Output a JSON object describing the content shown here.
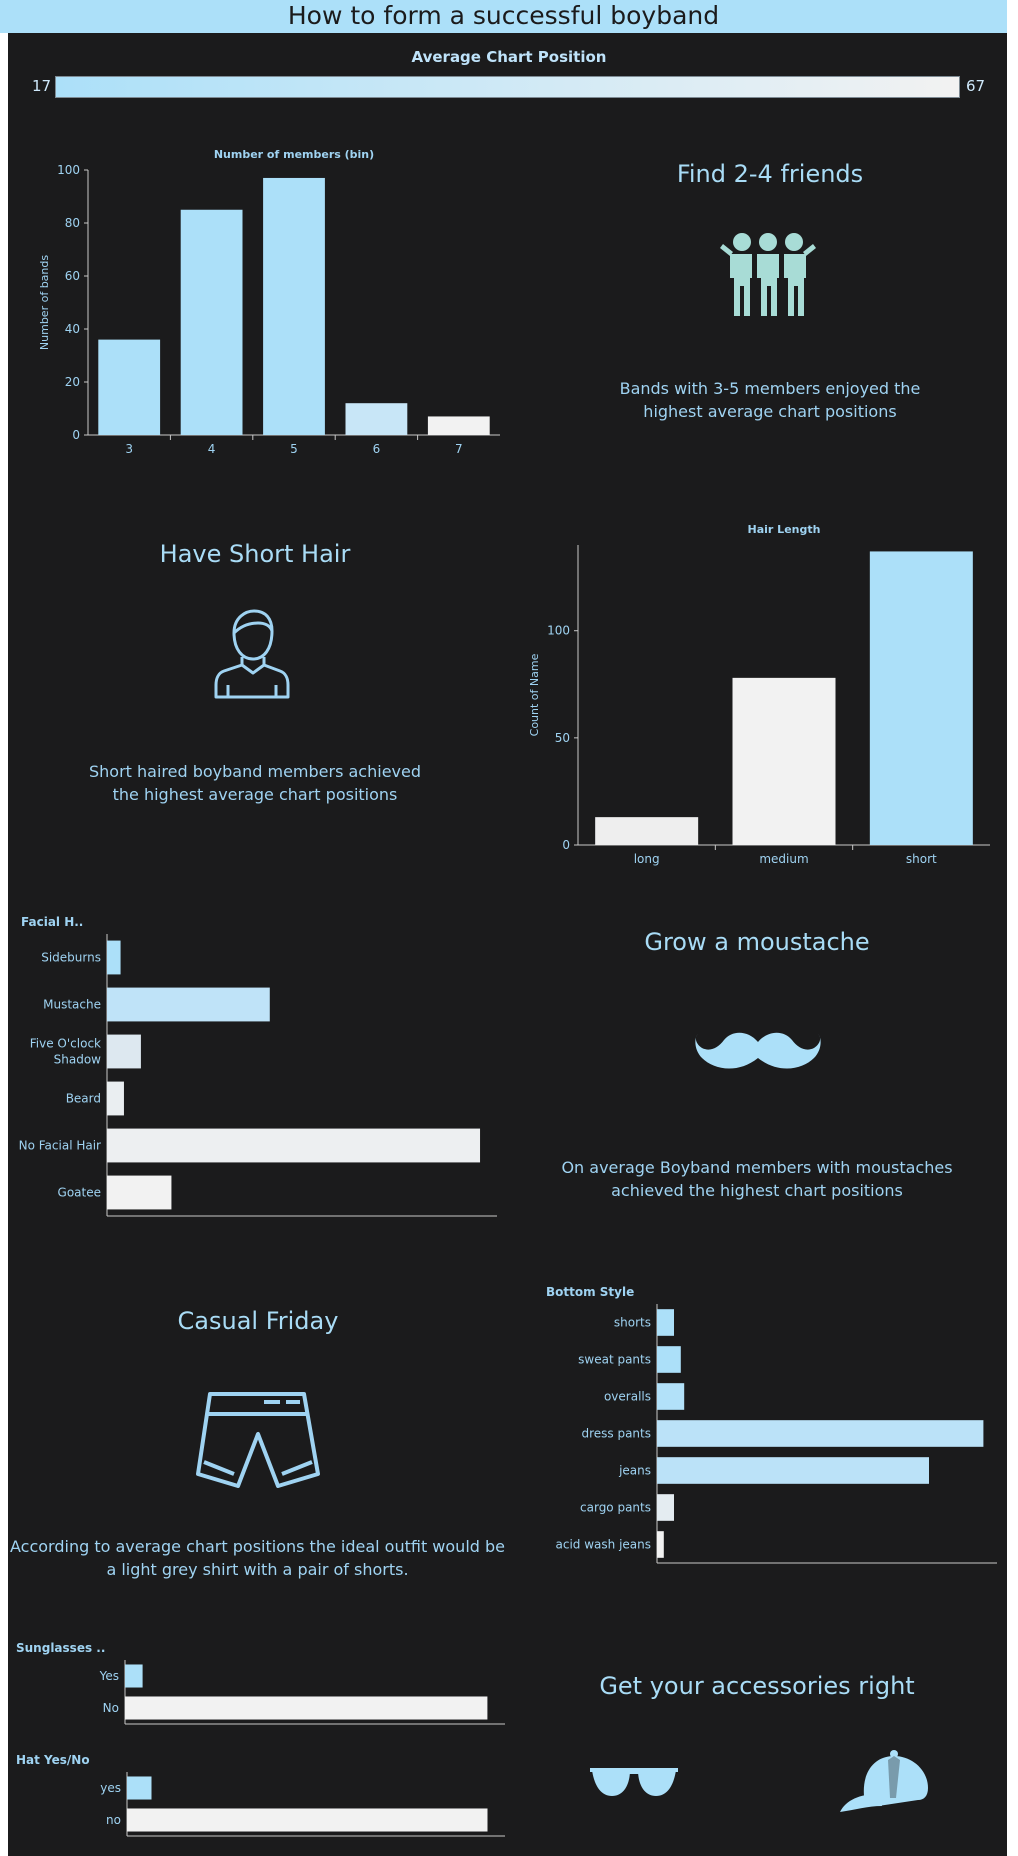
{
  "dashboard_title": "How to form a successful boyband",
  "legend": {
    "title": "Average Chart Position",
    "min_label": "17",
    "max_label": "67",
    "color_low": "#ace0f9",
    "color_high": "#f2f2f2"
  },
  "colors": {
    "background": "#1b1b1c",
    "accent": "#ace0f9",
    "light": "#f2f2f2",
    "text": "#9fd3f2"
  },
  "panels": {
    "friends": {
      "heading": "Find 2-4 friends",
      "text_line1": "Bands with 3-5 members enjoyed the",
      "text_line2": "highest average chart positions",
      "icon": "group-of-friends-icon"
    },
    "hair": {
      "heading": "Have Short Hair",
      "text_line1": "Short haired boyband members achieved",
      "text_line2": "the highest average chart positions",
      "icon": "person-short-hair-icon"
    },
    "moustache": {
      "heading": "Grow a moustache",
      "text_line1": "On average Boyband members with moustaches",
      "text_line2": "achieved the highest chart positions",
      "icon": "moustache-icon"
    },
    "outfit": {
      "heading": "Casual Friday",
      "text_line1": "According to average chart positions the ideal outfit would be",
      "text_line2": "a light grey shirt with a pair of shorts.",
      "icon": "shorts-icon"
    },
    "accessories": {
      "heading": "Get your accessories right",
      "icons": [
        "sunglasses-icon",
        "cap-icon"
      ]
    }
  },
  "chart_data": [
    {
      "id": "members",
      "type": "bar",
      "title": "Number of members (bin)",
      "xlabel": "",
      "ylabel": "Number of bands",
      "categories": [
        "3",
        "4",
        "5",
        "6",
        "7"
      ],
      "values": [
        36,
        85,
        97,
        12,
        7
      ],
      "colors": [
        "#ace0f9",
        "#ace0f9",
        "#ace0f9",
        "#c8e6f7",
        "#f2f2f2"
      ],
      "yticks": [
        0,
        20,
        40,
        60,
        80,
        100
      ],
      "ylim": [
        0,
        100
      ]
    },
    {
      "id": "hair",
      "type": "bar",
      "title": "Hair Length",
      "xlabel": "",
      "ylabel": "Count of Name",
      "categories": [
        "long",
        "medium",
        "short"
      ],
      "values": [
        13,
        78,
        137
      ],
      "colors": [
        "#eeeeee",
        "#f2f2f2",
        "#ace0f9"
      ],
      "yticks": [
        0,
        50,
        100
      ],
      "ylim": [
        0,
        140
      ]
    },
    {
      "id": "facial",
      "type": "bar",
      "orientation": "horizontal",
      "title": "Facial H..",
      "categories": [
        "Sideburns",
        "Mustache",
        "Five O'clock Shadow",
        "Beard",
        "No Facial Hair",
        "Goatee"
      ],
      "values": [
        4,
        48,
        10,
        5,
        110,
        19
      ],
      "colors": [
        "#ace0f9",
        "#bfe3f8",
        "#dde8f0",
        "#eaeef1",
        "#edeff1",
        "#f2f2f2"
      ],
      "xlim": [
        0,
        115
      ]
    },
    {
      "id": "bottom",
      "type": "bar",
      "orientation": "horizontal",
      "title": "Bottom Style",
      "categories": [
        "shorts",
        "sweat pants",
        "overalls",
        "dress pants",
        "jeans",
        "cargo pants",
        "acid wash jeans"
      ],
      "values": [
        5,
        7,
        8,
        96,
        80,
        5,
        2
      ],
      "colors": [
        "#ace0f9",
        "#ace0f9",
        "#b2e1f9",
        "#bbe2f8",
        "#bbe2f8",
        "#e4ecf1",
        "#f2f2f2"
      ],
      "xlim": [
        0,
        100
      ]
    },
    {
      "id": "sunglasses",
      "type": "bar",
      "orientation": "horizontal",
      "title": "Sunglasses ..",
      "categories": [
        "Yes",
        "No"
      ],
      "values": [
        5,
        103
      ],
      "colors": [
        "#ace0f9",
        "#f2f2f2"
      ],
      "xlim": [
        0,
        108
      ]
    },
    {
      "id": "hat",
      "type": "bar",
      "orientation": "horizontal",
      "title": "Hat Yes/No",
      "categories": [
        "yes",
        "no"
      ],
      "values": [
        7,
        103
      ],
      "colors": [
        "#ace0f9",
        "#f2f2f2"
      ],
      "xlim": [
        0,
        108
      ]
    }
  ]
}
